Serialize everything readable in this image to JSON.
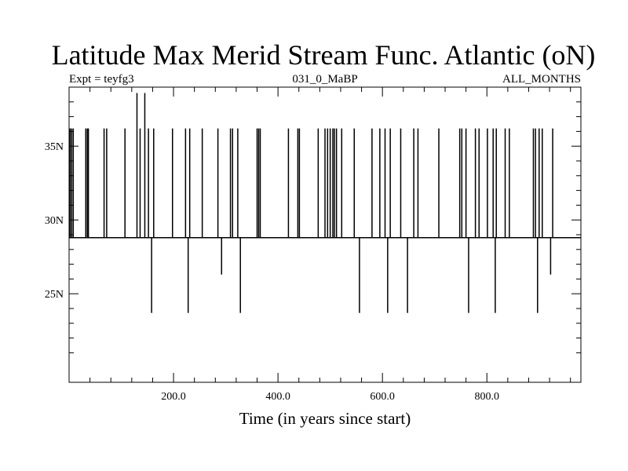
{
  "chart_data": {
    "type": "line",
    "title": "Latitude Max Merid Stream Func. Atlantic (oN)",
    "subtitle_left": "Expt = teyfg3",
    "subtitle_center": "031_0_MaBP",
    "subtitle_right": "ALL_MONTHS",
    "xlabel": "Time (in years since start)",
    "ylabel": "",
    "xlim": [
      0,
      980
    ],
    "ylim": [
      19,
      39
    ],
    "x_ticks": [
      {
        "value": 200,
        "label": "200.0"
      },
      {
        "value": 400,
        "label": "400.0"
      },
      {
        "value": 600,
        "label": "600.0"
      },
      {
        "value": 800,
        "label": "800.0"
      }
    ],
    "y_ticks": [
      {
        "value": 25,
        "label": "25N"
      },
      {
        "value": 30,
        "label": "30N"
      },
      {
        "value": 35,
        "label": "35N"
      }
    ],
    "baseline": 28.8,
    "grid": false,
    "colors": {
      "line": "#000000",
      "background": "#ffffff"
    },
    "spikes": [
      {
        "x": 2,
        "y": 36.2
      },
      {
        "x": 5,
        "y": 36.2
      },
      {
        "x": 8,
        "y": 36.2
      },
      {
        "x": 32,
        "y": 36.2
      },
      {
        "x": 35,
        "y": 36.2
      },
      {
        "x": 37,
        "y": 36.2
      },
      {
        "x": 67,
        "y": 36.2
      },
      {
        "x": 72,
        "y": 36.2
      },
      {
        "x": 107,
        "y": 36.2
      },
      {
        "x": 130,
        "y": 38.6
      },
      {
        "x": 136,
        "y": 36.2
      },
      {
        "x": 145,
        "y": 38.6
      },
      {
        "x": 152,
        "y": 36.2
      },
      {
        "x": 158,
        "y": 23.7
      },
      {
        "x": 162,
        "y": 36.2
      },
      {
        "x": 198,
        "y": 36.2
      },
      {
        "x": 223,
        "y": 36.2
      },
      {
        "x": 228,
        "y": 23.7
      },
      {
        "x": 231,
        "y": 36.2
      },
      {
        "x": 255,
        "y": 36.2
      },
      {
        "x": 285,
        "y": 36.2
      },
      {
        "x": 292,
        "y": 26.3
      },
      {
        "x": 309,
        "y": 36.2
      },
      {
        "x": 313,
        "y": 36.2
      },
      {
        "x": 323,
        "y": 36.2
      },
      {
        "x": 328,
        "y": 23.7
      },
      {
        "x": 360,
        "y": 36.2
      },
      {
        "x": 363,
        "y": 36.2
      },
      {
        "x": 366,
        "y": 36.2
      },
      {
        "x": 420,
        "y": 36.2
      },
      {
        "x": 438,
        "y": 36.2
      },
      {
        "x": 441,
        "y": 36.2
      },
      {
        "x": 477,
        "y": 36.2
      },
      {
        "x": 490,
        "y": 36.2
      },
      {
        "x": 495,
        "y": 36.2
      },
      {
        "x": 500,
        "y": 36.2
      },
      {
        "x": 505,
        "y": 36.2
      },
      {
        "x": 508,
        "y": 36.2
      },
      {
        "x": 512,
        "y": 36.2
      },
      {
        "x": 522,
        "y": 36.2
      },
      {
        "x": 546,
        "y": 36.2
      },
      {
        "x": 556,
        "y": 23.7
      },
      {
        "x": 580,
        "y": 36.2
      },
      {
        "x": 595,
        "y": 36.2
      },
      {
        "x": 605,
        "y": 36.2
      },
      {
        "x": 610,
        "y": 23.7
      },
      {
        "x": 615,
        "y": 36.2
      },
      {
        "x": 635,
        "y": 36.2
      },
      {
        "x": 648,
        "y": 23.7
      },
      {
        "x": 660,
        "y": 36.2
      },
      {
        "x": 668,
        "y": 36.2
      },
      {
        "x": 708,
        "y": 36.2
      },
      {
        "x": 748,
        "y": 36.2
      },
      {
        "x": 752,
        "y": 36.2
      },
      {
        "x": 760,
        "y": 36.2
      },
      {
        "x": 765,
        "y": 23.7
      },
      {
        "x": 778,
        "y": 36.2
      },
      {
        "x": 785,
        "y": 36.2
      },
      {
        "x": 801,
        "y": 36.2
      },
      {
        "x": 812,
        "y": 36.2
      },
      {
        "x": 816,
        "y": 23.7
      },
      {
        "x": 818,
        "y": 36.2
      },
      {
        "x": 835,
        "y": 36.2
      },
      {
        "x": 843,
        "y": 36.2
      },
      {
        "x": 889,
        "y": 36.2
      },
      {
        "x": 893,
        "y": 36.2
      },
      {
        "x": 897,
        "y": 23.7
      },
      {
        "x": 900,
        "y": 36.2
      },
      {
        "x": 906,
        "y": 36.2
      },
      {
        "x": 922,
        "y": 26.3
      },
      {
        "x": 926,
        "y": 36.2
      }
    ]
  }
}
